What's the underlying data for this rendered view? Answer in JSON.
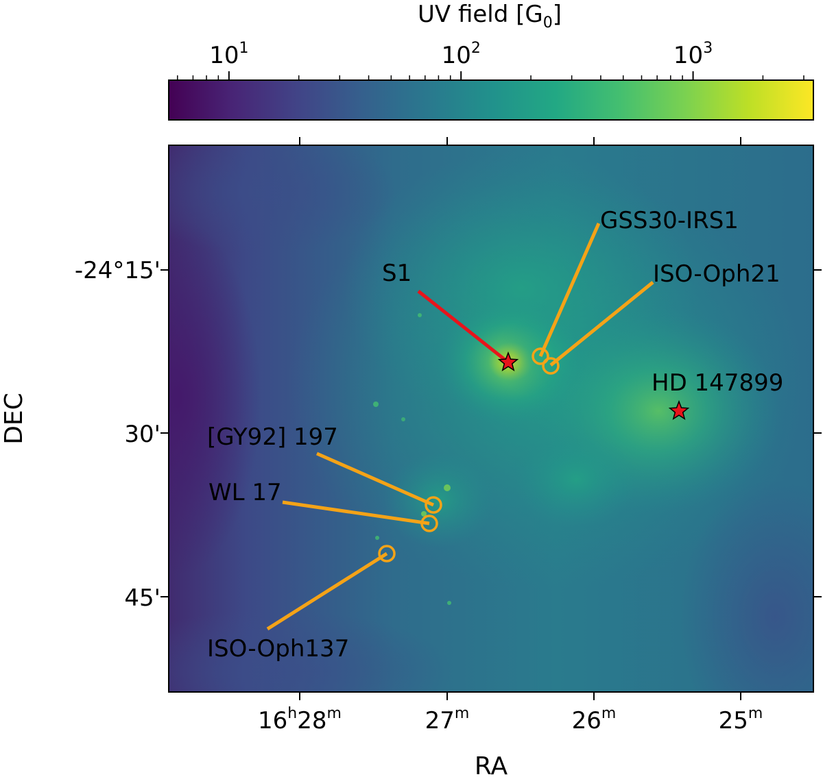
{
  "chart_data": {
    "type": "heatmap",
    "colorbar": {
      "label": "UV field [G",
      "label_subscript": "0",
      "label_suffix": "]",
      "scale": "log",
      "range": [
        5.5,
        3300
      ],
      "colormap": "viridis",
      "ticks": [
        {
          "value": 10,
          "base": "10",
          "exp": "1"
        },
        {
          "value": 100,
          "base": "10",
          "exp": "2"
        },
        {
          "value": 1000,
          "base": "10",
          "exp": "3"
        }
      ]
    },
    "xaxis": {
      "label": "RA",
      "ticks": [
        {
          "value": "16h28m",
          "parts": [
            [
              "16",
              ""
            ],
            [
              "h",
              "sup"
            ],
            [
              "28",
              ""
            ],
            [
              "m",
              "sup"
            ]
          ]
        },
        {
          "value": "27m",
          "parts": [
            [
              "27",
              ""
            ],
            [
              "m",
              "sup"
            ]
          ]
        },
        {
          "value": "26m",
          "parts": [
            [
              "26",
              ""
            ],
            [
              "m",
              "sup"
            ]
          ]
        },
        {
          "value": "25m",
          "parts": [
            [
              "25",
              ""
            ],
            [
              "m",
              "sup"
            ]
          ]
        }
      ]
    },
    "yaxis": {
      "label": "DEC",
      "ticks": [
        "-24°15'",
        "30'",
        "45'"
      ]
    },
    "stars": [
      {
        "name": "S1",
        "color": "#e8141b"
      },
      {
        "name": "HD 147899",
        "color": "#e8141b"
      }
    ],
    "sources": [
      {
        "name": "GSS30-IRS1",
        "color": "#f5a317"
      },
      {
        "name": "ISO-Oph21",
        "color": "#f5a317"
      },
      {
        "name": "[GY92] 197",
        "color": "#f5a317"
      },
      {
        "name": "WL 17",
        "color": "#f5a317"
      },
      {
        "name": "ISO-Oph137",
        "color": "#f5a317"
      }
    ],
    "grid": false
  }
}
